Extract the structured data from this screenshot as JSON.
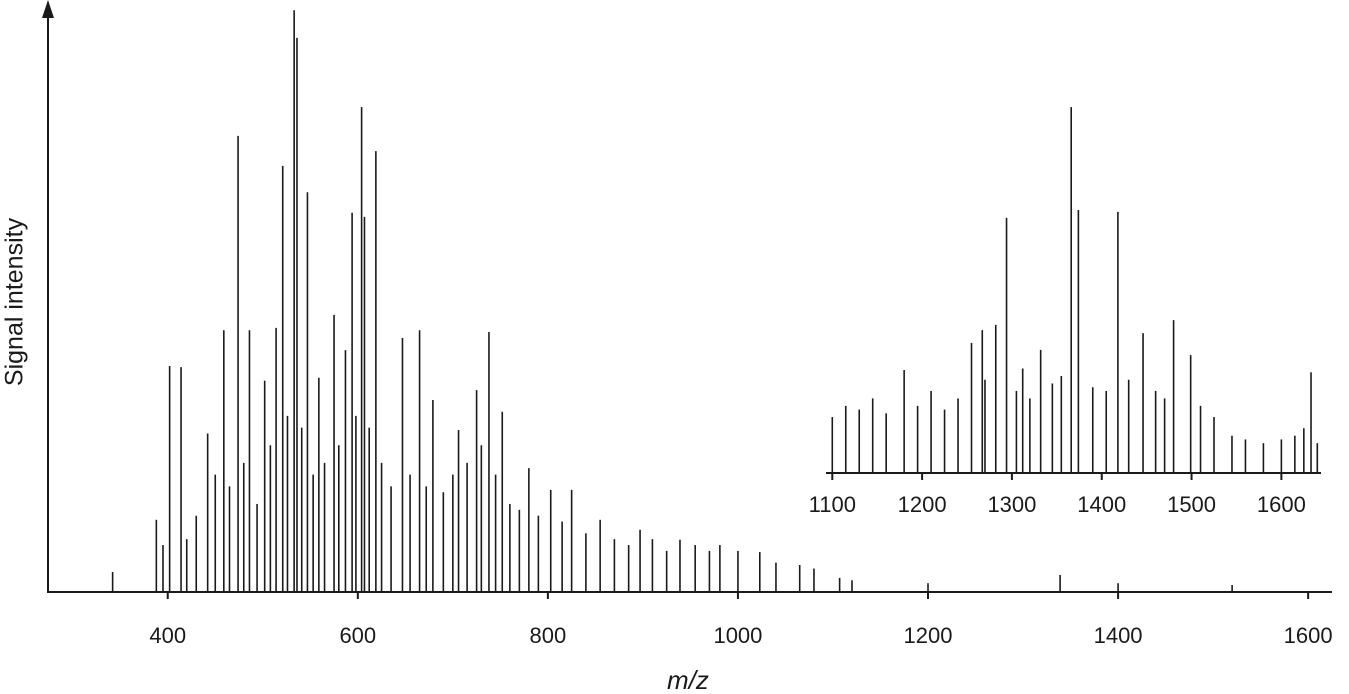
{
  "chart_data": [
    {
      "type": "stem",
      "x_label": "m/z",
      "y_label": "Signal intensity",
      "xlim": [
        274,
        1623
      ],
      "ylim": [
        0,
        100
      ],
      "xticks": [
        400,
        600,
        800,
        1000,
        1200,
        1400,
        1600
      ],
      "color": "#1a1a1a",
      "x": [
        342,
        388,
        395,
        402,
        414,
        420,
        430,
        442,
        450,
        459,
        465,
        474,
        480,
        486,
        494,
        502,
        508,
        514,
        521,
        526,
        533,
        536,
        541,
        547,
        553,
        559,
        565,
        575,
        580,
        587,
        594,
        598,
        604,
        607,
        612,
        619,
        625,
        635,
        647,
        655,
        665,
        672,
        679,
        690,
        700,
        706,
        715,
        725,
        730,
        738,
        745,
        752,
        760,
        770,
        780,
        790,
        803,
        815,
        825,
        840,
        855,
        870,
        885,
        897,
        910,
        925,
        939,
        955,
        970,
        981,
        1000,
        1023,
        1040,
        1065,
        1080,
        1107,
        1120,
        1200,
        1339,
        1400,
        1520
      ],
      "values": [
        3.4,
        12.3,
        8,
        38.5,
        38.3,
        9,
        13,
        27,
        20,
        44.6,
        18,
        77.7,
        22,
        44.6,
        15,
        36,
        25,
        45,
        72.6,
        30,
        99.1,
        94.4,
        28,
        68.1,
        20,
        36.5,
        22,
        47.2,
        25,
        41.2,
        64.6,
        30,
        82.6,
        63.9,
        28,
        75.1,
        22,
        18,
        43.3,
        20,
        44.6,
        18,
        32.7,
        17,
        20,
        27.6,
        22,
        34.4,
        25,
        44.3,
        20,
        30.7,
        15,
        14,
        21.1,
        13,
        17.4,
        12,
        17.4,
        10,
        12.3,
        9,
        8,
        10.6,
        9,
        7,
        8.9,
        8,
        7,
        8,
        7,
        6.8,
        5,
        4.6,
        4,
        2.4,
        2,
        1.5,
        2.9,
        1.5,
        1.2
      ]
    },
    {
      "type": "stem",
      "xlim": [
        1093,
        1643
      ],
      "ylim": [
        0,
        100
      ],
      "xticks": [
        1100,
        1200,
        1300,
        1400,
        1500,
        1600
      ],
      "color": "#1a1a1a",
      "x": [
        1100,
        1115,
        1130,
        1145,
        1160,
        1180,
        1195,
        1210,
        1225,
        1240,
        1255,
        1267,
        1270,
        1282,
        1294,
        1305,
        1312,
        1320,
        1332,
        1345,
        1355,
        1366,
        1374,
        1390,
        1405,
        1418,
        1430,
        1446,
        1460,
        1470,
        1480,
        1499,
        1510,
        1525,
        1545,
        1560,
        1580,
        1600,
        1615,
        1625,
        1633,
        1640
      ],
      "values": [
        15,
        18,
        17,
        20,
        16,
        27.6,
        18,
        22,
        17,
        20,
        34.9,
        38.3,
        25,
        39.7,
        68.4,
        22,
        28,
        20,
        33,
        24,
        26,
        98.1,
        70.5,
        23,
        22,
        70,
        25,
        37.5,
        22,
        20,
        41,
        31.6,
        18,
        15,
        10,
        9,
        8,
        9,
        10,
        12,
        27,
        8
      ]
    }
  ]
}
